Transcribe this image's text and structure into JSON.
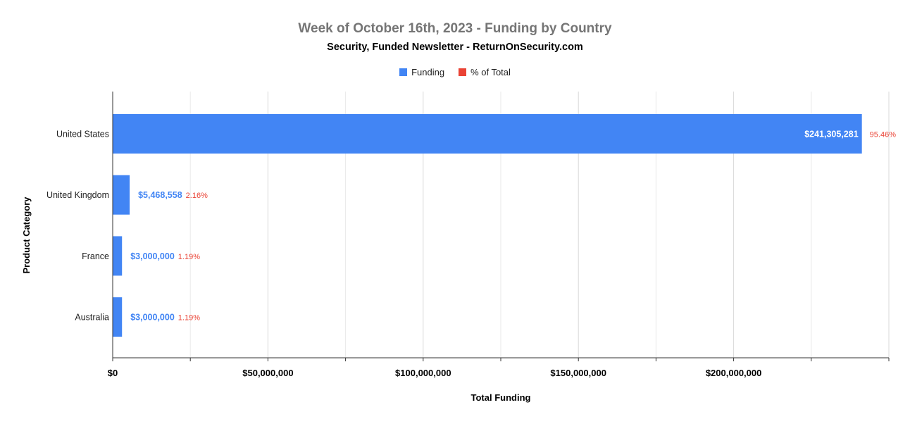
{
  "chart_data": {
    "type": "bar",
    "orientation": "horizontal",
    "title": "Week of October 16th, 2023 - Funding by Country",
    "subtitle": "Security, Funded Newsletter - ReturnOnSecurity.com",
    "xlabel": "Total Funding",
    "ylabel": "Product Category",
    "categories": [
      "United States",
      "United Kingdom",
      "France",
      "Australia"
    ],
    "series": [
      {
        "name": "Funding",
        "color": "#4285f4",
        "values": [
          241305281,
          5468558,
          3000000,
          3000000
        ],
        "labels": [
          "$241,305,281",
          "$5,468,558",
          "$3,000,000",
          "$3,000,000"
        ]
      },
      {
        "name": "% of Total",
        "color": "#ea4335",
        "values": [
          95.46,
          2.16,
          1.19,
          1.19
        ],
        "labels": [
          "95.46%",
          "2.16%",
          "1.19%",
          "1.19%"
        ]
      }
    ],
    "xlim": [
      0,
      250000000
    ],
    "xticks": [
      0,
      50000000,
      100000000,
      150000000,
      200000000
    ],
    "xtick_labels": [
      "$0",
      "$50,000,000",
      "$100,000,000",
      "$150,000,000",
      "$200,000,000"
    ],
    "grid": true,
    "legend_position": "top"
  }
}
